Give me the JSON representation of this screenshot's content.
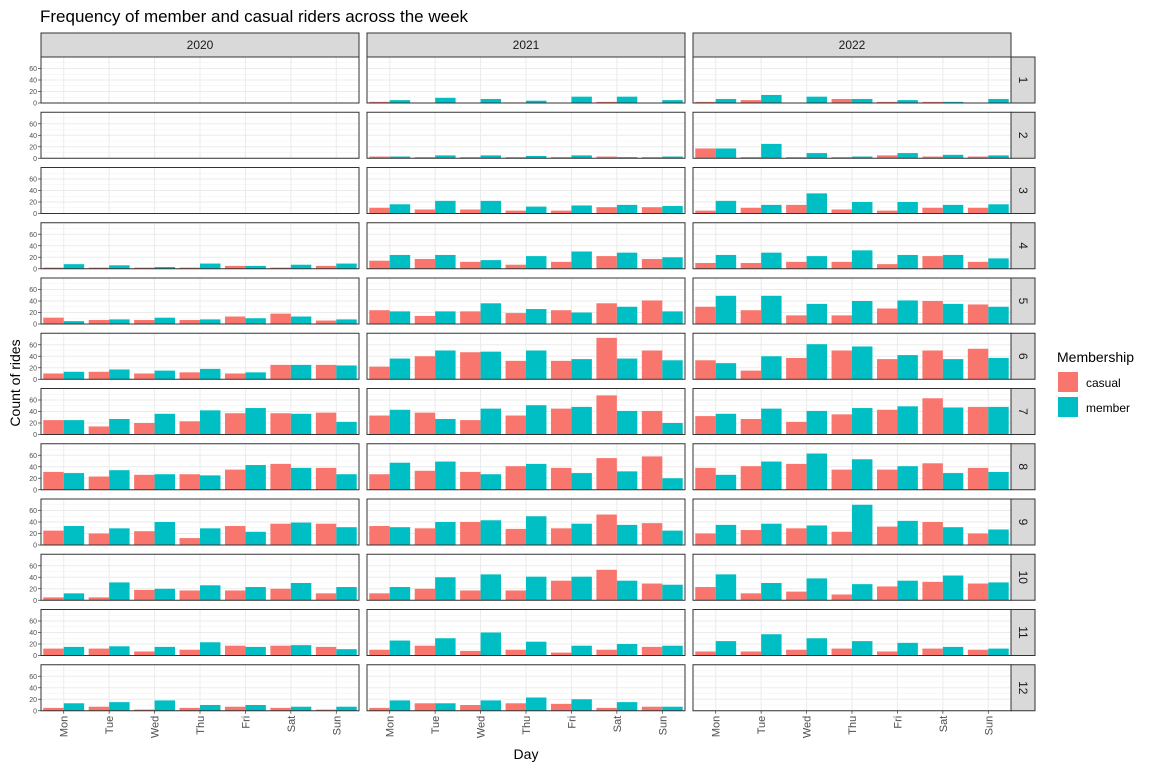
{
  "chart_data": {
    "type": "bar",
    "title": "Frequency of member and casual riders across the week",
    "xlabel": "Day",
    "ylabel": "Count of rides",
    "ylim": [
      0,
      80
    ],
    "yticks": [
      0,
      20,
      40,
      60
    ],
    "categories": [
      "Mon",
      "Tue",
      "Wed",
      "Thu",
      "Fri",
      "Sat",
      "Sun"
    ],
    "facet_columns": [
      "2020",
      "2021",
      "2022"
    ],
    "facet_rows": [
      "1",
      "2",
      "3",
      "4",
      "5",
      "6",
      "7",
      "8",
      "9",
      "10",
      "11",
      "12"
    ],
    "legend": {
      "title": "Membership",
      "position": "right",
      "entries": [
        {
          "name": "casual",
          "color": "#F8766D"
        },
        {
          "name": "member",
          "color": "#00BFC4"
        }
      ]
    },
    "grid": true,
    "panels": [
      {
        "year": "2020",
        "month": "1",
        "casual": [
          0,
          0,
          0,
          0,
          0,
          0,
          0
        ],
        "member": [
          0,
          0,
          0,
          0,
          0,
          0,
          0
        ]
      },
      {
        "year": "2021",
        "month": "1",
        "casual": [
          2,
          0,
          0,
          1,
          0,
          2,
          0
        ],
        "member": [
          5,
          9,
          7,
          4,
          11,
          11,
          5
        ]
      },
      {
        "year": "2022",
        "month": "1",
        "casual": [
          2,
          5,
          0,
          7,
          2,
          2,
          0
        ],
        "member": [
          7,
          14,
          11,
          7,
          5,
          2,
          7
        ]
      },
      {
        "year": "2020",
        "month": "2",
        "casual": [
          0,
          0,
          0,
          0,
          0,
          0,
          0
        ],
        "member": [
          0,
          0,
          0,
          0,
          0,
          0,
          0
        ]
      },
      {
        "year": "2021",
        "month": "2",
        "casual": [
          3,
          2,
          2,
          2,
          2,
          3,
          2
        ],
        "member": [
          3,
          5,
          5,
          4,
          5,
          2,
          3
        ]
      },
      {
        "year": "2022",
        "month": "2",
        "casual": [
          17,
          2,
          2,
          2,
          5,
          3,
          3
        ],
        "member": [
          17,
          25,
          9,
          3,
          9,
          6,
          5
        ]
      },
      {
        "year": "2020",
        "month": "3",
        "casual": [
          0,
          0,
          0,
          0,
          0,
          0,
          0
        ],
        "member": [
          0,
          0,
          0,
          0,
          0,
          0,
          0
        ]
      },
      {
        "year": "2021",
        "month": "3",
        "casual": [
          10,
          7,
          7,
          5,
          5,
          11,
          11
        ],
        "member": [
          16,
          22,
          22,
          12,
          14,
          15,
          13
        ]
      },
      {
        "year": "2022",
        "month": "3",
        "casual": [
          5,
          10,
          15,
          7,
          5,
          10,
          10
        ],
        "member": [
          22,
          15,
          35,
          20,
          20,
          15,
          16
        ]
      },
      {
        "year": "2020",
        "month": "4",
        "casual": [
          2,
          2,
          2,
          2,
          5,
          2,
          5
        ],
        "member": [
          8,
          6,
          3,
          9,
          5,
          7,
          9
        ]
      },
      {
        "year": "2021",
        "month": "4",
        "casual": [
          14,
          17,
          12,
          7,
          12,
          22,
          17
        ],
        "member": [
          24,
          24,
          15,
          22,
          30,
          28,
          20
        ]
      },
      {
        "year": "2022",
        "month": "4",
        "casual": [
          10,
          10,
          12,
          12,
          8,
          22,
          12
        ],
        "member": [
          24,
          28,
          22,
          32,
          24,
          24,
          18
        ]
      },
      {
        "year": "2020",
        "month": "5",
        "casual": [
          11,
          7,
          7,
          7,
          13,
          18,
          6
        ],
        "member": [
          5,
          8,
          11,
          8,
          10,
          13,
          8
        ]
      },
      {
        "year": "2021",
        "month": "5",
        "casual": [
          24,
          14,
          22,
          19,
          24,
          36,
          41
        ],
        "member": [
          22,
          22,
          36,
          26,
          20,
          30,
          22
        ]
      },
      {
        "year": "2022",
        "month": "5",
        "casual": [
          30,
          24,
          15,
          15,
          27,
          40,
          34
        ],
        "member": [
          49,
          49,
          35,
          40,
          41,
          35,
          30
        ]
      },
      {
        "year": "2020",
        "month": "6",
        "casual": [
          10,
          13,
          10,
          12,
          10,
          25,
          25
        ],
        "member": [
          13,
          17,
          15,
          18,
          12,
          25,
          24
        ]
      },
      {
        "year": "2021",
        "month": "6",
        "casual": [
          22,
          40,
          47,
          32,
          32,
          72,
          50
        ],
        "member": [
          36,
          50,
          48,
          50,
          35,
          36,
          33
        ]
      },
      {
        "year": "2022",
        "month": "6",
        "casual": [
          33,
          15,
          37,
          50,
          35,
          50,
          53
        ],
        "member": [
          28,
          40,
          61,
          57,
          42,
          35,
          37
        ]
      },
      {
        "year": "2020",
        "month": "7",
        "casual": [
          25,
          14,
          20,
          23,
          37,
          37,
          38
        ],
        "member": [
          25,
          27,
          36,
          42,
          46,
          36,
          22
        ]
      },
      {
        "year": "2021",
        "month": "7",
        "casual": [
          33,
          38,
          25,
          33,
          45,
          68,
          41
        ],
        "member": [
          43,
          27,
          45,
          51,
          48,
          41,
          20
        ]
      },
      {
        "year": "2022",
        "month": "7",
        "casual": [
          32,
          27,
          22,
          35,
          43,
          63,
          48
        ],
        "member": [
          36,
          45,
          41,
          46,
          49,
          47,
          48
        ]
      },
      {
        "year": "2020",
        "month": "8",
        "casual": [
          31,
          23,
          26,
          27,
          35,
          45,
          38
        ],
        "member": [
          29,
          34,
          27,
          25,
          43,
          38,
          27
        ]
      },
      {
        "year": "2021",
        "month": "8",
        "casual": [
          27,
          33,
          31,
          41,
          38,
          55,
          58
        ],
        "member": [
          47,
          49,
          27,
          45,
          29,
          32,
          20
        ]
      },
      {
        "year": "2022",
        "month": "8",
        "casual": [
          38,
          41,
          45,
          35,
          35,
          46,
          38
        ],
        "member": [
          26,
          49,
          63,
          53,
          41,
          29,
          31
        ]
      },
      {
        "year": "2020",
        "month": "9",
        "casual": [
          25,
          20,
          24,
          12,
          33,
          37,
          37
        ],
        "member": [
          33,
          29,
          40,
          29,
          23,
          39,
          31
        ]
      },
      {
        "year": "2021",
        "month": "9",
        "casual": [
          33,
          29,
          40,
          28,
          29,
          53,
          38
        ],
        "member": [
          31,
          40,
          43,
          50,
          37,
          35,
          25
        ]
      },
      {
        "year": "2022",
        "month": "9",
        "casual": [
          20,
          26,
          29,
          23,
          32,
          40,
          20
        ],
        "member": [
          35,
          37,
          34,
          70,
          42,
          31,
          27
        ]
      },
      {
        "year": "2020",
        "month": "10",
        "casual": [
          5,
          5,
          18,
          17,
          17,
          20,
          12
        ],
        "member": [
          12,
          31,
          20,
          26,
          23,
          30,
          23
        ]
      },
      {
        "year": "2021",
        "month": "10",
        "casual": [
          12,
          20,
          17,
          17,
          34,
          53,
          29
        ],
        "member": [
          23,
          40,
          45,
          41,
          41,
          34,
          27
        ]
      },
      {
        "year": "2022",
        "month": "10",
        "casual": [
          23,
          12,
          15,
          10,
          24,
          32,
          29
        ],
        "member": [
          45,
          30,
          38,
          28,
          34,
          43,
          31
        ]
      },
      {
        "year": "2020",
        "month": "11",
        "casual": [
          12,
          12,
          7,
          10,
          17,
          17,
          15
        ],
        "member": [
          15,
          16,
          15,
          23,
          15,
          18,
          11
        ]
      },
      {
        "year": "2021",
        "month": "11",
        "casual": [
          10,
          17,
          8,
          10,
          5,
          10,
          15
        ],
        "member": [
          26,
          30,
          40,
          24,
          17,
          20,
          17
        ]
      },
      {
        "year": "2022",
        "month": "11",
        "casual": [
          7,
          7,
          10,
          12,
          7,
          12,
          10
        ],
        "member": [
          25,
          37,
          30,
          25,
          22,
          15,
          12
        ]
      },
      {
        "year": "2020",
        "month": "12",
        "casual": [
          5,
          7,
          2,
          5,
          7,
          5,
          2
        ],
        "member": [
          13,
          15,
          18,
          10,
          10,
          7,
          7
        ]
      },
      {
        "year": "2021",
        "month": "12",
        "casual": [
          5,
          13,
          10,
          13,
          12,
          5,
          7
        ],
        "member": [
          18,
          13,
          18,
          23,
          20,
          15,
          7
        ]
      },
      {
        "year": "2022",
        "month": "12",
        "casual": [
          0,
          0,
          0,
          0,
          0,
          0,
          0
        ],
        "member": [
          0,
          0,
          0,
          0,
          0,
          0,
          0
        ]
      }
    ]
  }
}
